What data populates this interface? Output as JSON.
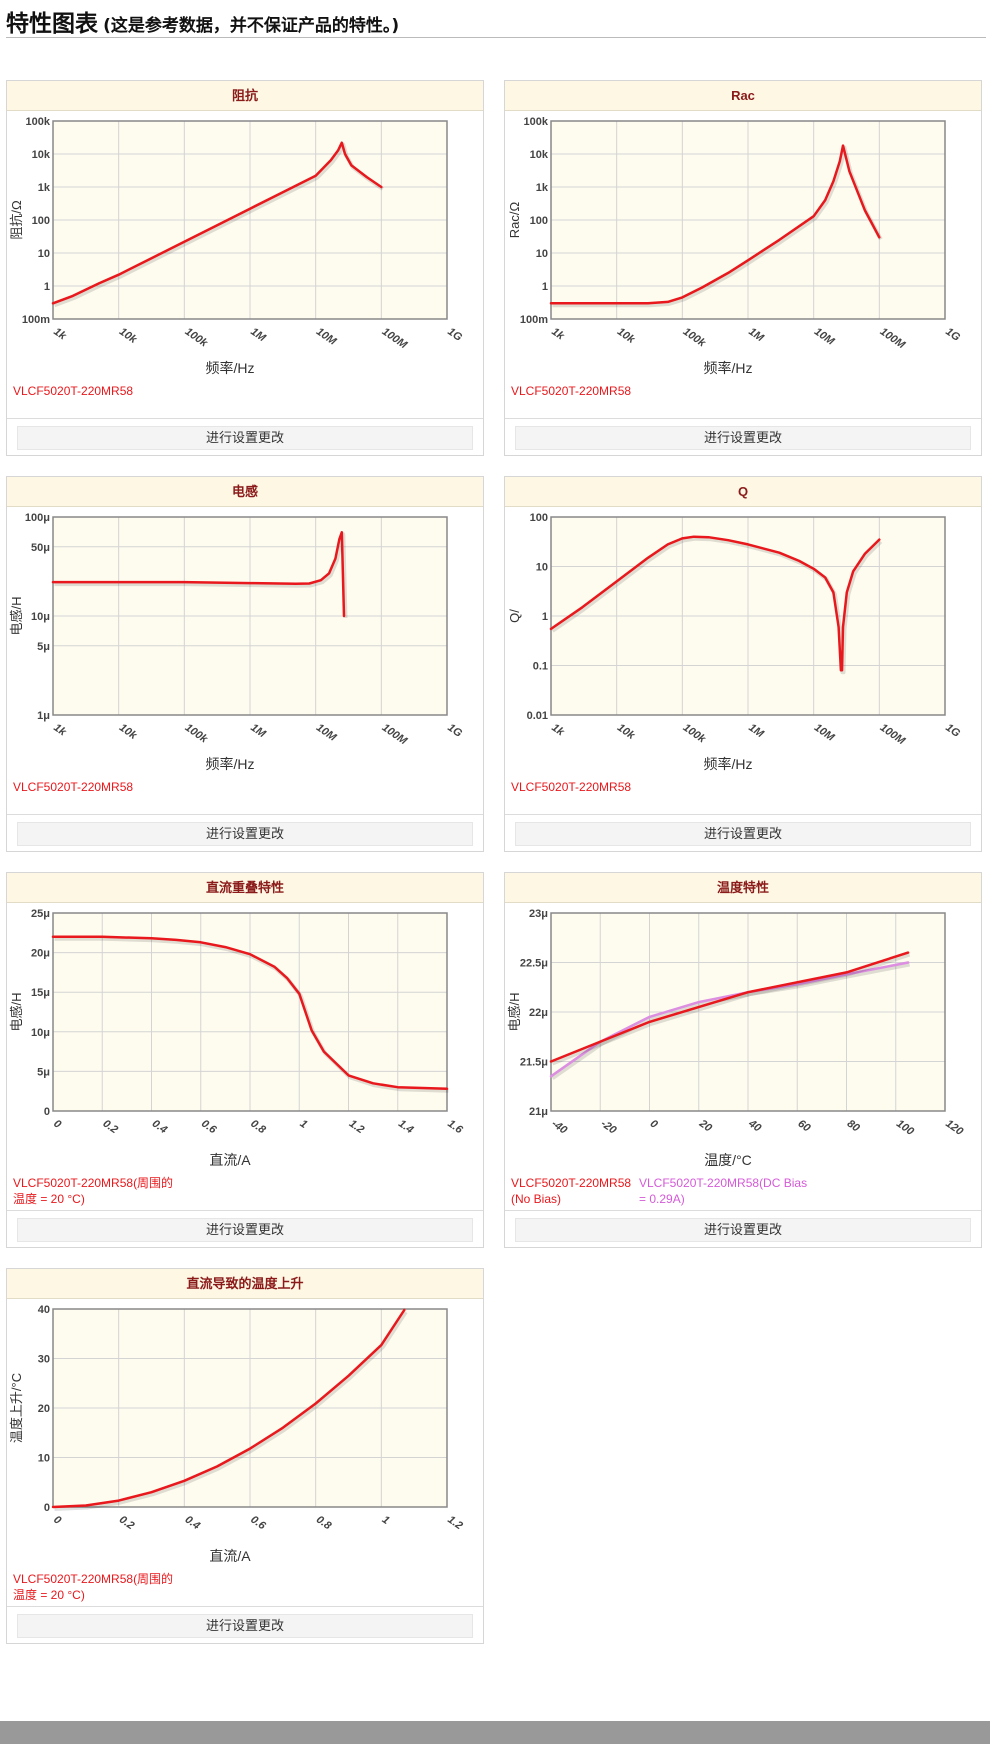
{
  "header": {
    "title": "特性图表",
    "subtitle": "(这是参考数据，并不保证产品的特性。)"
  },
  "colors": {
    "series_red": "#e8181c",
    "series_pink": "#dc8ee0",
    "legend_red": "#e8181c",
    "legend_pink": "#d55ad8",
    "panel_bg": "#fefbef",
    "header_bg": "#fdf7e3",
    "title_color": "#8b1a1a"
  },
  "setting_label": "进行设置更改",
  "charts": [
    {
      "id": "impedance",
      "title": "阻抗",
      "type": "line",
      "xscale": "log",
      "yscale": "log",
      "xlabel": "频率/Hz",
      "ylabel": "阻抗/Ω",
      "xlim": [
        1000,
        1000000000
      ],
      "ylim": [
        0.1,
        100000
      ],
      "xticks": [
        [
          1000,
          "1k"
        ],
        [
          10000,
          "10k"
        ],
        [
          100000,
          "100k"
        ],
        [
          1000000,
          "1M"
        ],
        [
          10000000,
          "10M"
        ],
        [
          100000000,
          "100M"
        ],
        [
          1000000000,
          "1G"
        ]
      ],
      "yticks": [
        [
          0.1,
          "100m"
        ],
        [
          1,
          "1"
        ],
        [
          10,
          "10"
        ],
        [
          100,
          "100"
        ],
        [
          1000,
          "1k"
        ],
        [
          10000,
          "10k"
        ],
        [
          100000,
          "100k"
        ]
      ],
      "series": [
        {
          "name": "VLCF5020T-220MR58",
          "color": "#e8181c",
          "x": [
            1000,
            2000,
            5000,
            10000,
            30000,
            100000,
            300000,
            1000000,
            3000000,
            10000000,
            17000000,
            22000000,
            25000000,
            28000000,
            35000000,
            60000000,
            100000000
          ],
          "y": [
            0.3,
            0.5,
            1.2,
            2.2,
            6.6,
            22,
            66,
            220,
            660,
            2200,
            6500,
            13000,
            22000,
            10000,
            4500,
            2000,
            1000
          ]
        }
      ],
      "legend": [
        {
          "text": "VLCF5020T-220MR58",
          "color": "#e8181c"
        }
      ]
    },
    {
      "id": "rac",
      "title": "Rac",
      "type": "line",
      "xscale": "log",
      "yscale": "log",
      "xlabel": "频率/Hz",
      "ylabel": "Rac/Ω",
      "xlim": [
        1000,
        1000000000
      ],
      "ylim": [
        0.1,
        100000
      ],
      "xticks": [
        [
          1000,
          "1k"
        ],
        [
          10000,
          "10k"
        ],
        [
          100000,
          "100k"
        ],
        [
          1000000,
          "1M"
        ],
        [
          10000000,
          "10M"
        ],
        [
          100000000,
          "100M"
        ],
        [
          1000000000,
          "1G"
        ]
      ],
      "yticks": [
        [
          0.1,
          "100m"
        ],
        [
          1,
          "1"
        ],
        [
          10,
          "10"
        ],
        [
          100,
          "100"
        ],
        [
          1000,
          "1k"
        ],
        [
          10000,
          "10k"
        ],
        [
          100000,
          "100k"
        ]
      ],
      "series": [
        {
          "name": "VLCF5020T-220MR58",
          "color": "#e8181c",
          "x": [
            1000,
            10000,
            30000,
            60000,
            100000,
            200000,
            500000,
            1000000,
            3000000,
            10000000,
            15000000,
            20000000,
            25000000,
            28000000,
            35000000,
            60000000,
            100000000
          ],
          "y": [
            0.3,
            0.3,
            0.3,
            0.33,
            0.45,
            0.9,
            2.5,
            6,
            25,
            130,
            400,
            1500,
            6000,
            18000,
            3000,
            200,
            30
          ]
        }
      ],
      "legend": [
        {
          "text": "VLCF5020T-220MR58",
          "color": "#e8181c"
        }
      ]
    },
    {
      "id": "inductance",
      "title": "电感",
      "type": "line",
      "xscale": "log",
      "yscale": "log",
      "xlabel": "频率/Hz",
      "ylabel": "电感/H",
      "xlim": [
        1000,
        1000000000
      ],
      "ylim": [
        1e-06,
        0.0001
      ],
      "xticks": [
        [
          1000,
          "1k"
        ],
        [
          10000,
          "10k"
        ],
        [
          100000,
          "100k"
        ],
        [
          1000000,
          "1M"
        ],
        [
          10000000,
          "10M"
        ],
        [
          100000000,
          "100M"
        ],
        [
          1000000000,
          "1G"
        ]
      ],
      "yticks": [
        [
          1e-06,
          "1μ"
        ],
        [
          5e-06,
          "5μ"
        ],
        [
          1e-05,
          "10μ"
        ],
        [
          5e-05,
          "50μ"
        ],
        [
          0.0001,
          "100μ"
        ]
      ],
      "series": [
        {
          "name": "VLCF5020T-220MR58",
          "color": "#e8181c",
          "x": [
            1000,
            10000,
            100000,
            1000000,
            5000000,
            8000000,
            12000000,
            16000000,
            20000000,
            23000000,
            25000000,
            27000000
          ],
          "y": [
            2.2e-05,
            2.2e-05,
            2.2e-05,
            2.15e-05,
            2.12e-05,
            2.13e-05,
            2.3e-05,
            2.7e-05,
            3.8e-05,
            6e-05,
            7e-05,
            1e-05
          ]
        }
      ],
      "legend": [
        {
          "text": "VLCF5020T-220MR58",
          "color": "#e8181c"
        }
      ]
    },
    {
      "id": "q",
      "title": "Q",
      "type": "line",
      "xscale": "log",
      "yscale": "log",
      "xlabel": "频率/Hz",
      "ylabel": "Q/",
      "xlim": [
        1000,
        1000000000
      ],
      "ylim": [
        0.01,
        100
      ],
      "xticks": [
        [
          1000,
          "1k"
        ],
        [
          10000,
          "10k"
        ],
        [
          100000,
          "100k"
        ],
        [
          1000000,
          "1M"
        ],
        [
          10000000,
          "10M"
        ],
        [
          100000000,
          "100M"
        ],
        [
          1000000000,
          "1G"
        ]
      ],
      "yticks": [
        [
          0.01,
          "0.01"
        ],
        [
          0.1,
          "0.1"
        ],
        [
          1,
          "1"
        ],
        [
          10,
          "10"
        ],
        [
          100,
          "100"
        ]
      ],
      "series": [
        {
          "name": "VLCF5020T-220MR58",
          "color": "#e8181c",
          "x": [
            1000,
            3000,
            10000,
            30000,
            60000,
            100000,
            150000,
            250000,
            500000,
            1000000,
            3000000,
            6000000,
            10000000,
            15000000,
            20000000,
            24000000,
            26000000,
            27000000,
            28000000,
            32000000,
            40000000,
            60000000,
            100000000
          ],
          "y": [
            0.55,
            1.5,
            5,
            15,
            28,
            37,
            40,
            39,
            34,
            28,
            19,
            13,
            9,
            6,
            3,
            0.6,
            0.08,
            0.08,
            0.6,
            3,
            8,
            18,
            35
          ]
        }
      ],
      "legend": [
        {
          "text": "VLCF5020T-220MR58",
          "color": "#e8181c"
        }
      ]
    },
    {
      "id": "dc-bias",
      "title": "直流重叠特性",
      "type": "line",
      "xscale": "linear",
      "yscale": "linear",
      "xlabel": "直流/A",
      "ylabel": "电感/H",
      "xlim": [
        0,
        1.6
      ],
      "ylim": [
        0,
        2.5e-05
      ],
      "xticks": [
        [
          0,
          "0"
        ],
        [
          0.2,
          "0.2"
        ],
        [
          0.4,
          "0.4"
        ],
        [
          0.6,
          "0.6"
        ],
        [
          0.8,
          "0.8"
        ],
        [
          1,
          "1"
        ],
        [
          1.2,
          "1.2"
        ],
        [
          1.4,
          "1.4"
        ],
        [
          1.6,
          "1.6"
        ]
      ],
      "yticks": [
        [
          0,
          "0"
        ],
        [
          5e-06,
          "5μ"
        ],
        [
          1e-05,
          "10μ"
        ],
        [
          1.5e-05,
          "15μ"
        ],
        [
          2e-05,
          "20μ"
        ],
        [
          2.5e-05,
          "25μ"
        ]
      ],
      "series": [
        {
          "name": "VLCF5020T-220MR58(周围的温度 = 20 °C)",
          "color": "#e8181c",
          "x": [
            0,
            0.2,
            0.4,
            0.5,
            0.6,
            0.7,
            0.8,
            0.9,
            0.95,
            1.0,
            1.05,
            1.1,
            1.15,
            1.2,
            1.3,
            1.4,
            1.5,
            1.6
          ],
          "y": [
            2.2e-05,
            2.2e-05,
            2.18e-05,
            2.16e-05,
            2.13e-05,
            2.07e-05,
            1.98e-05,
            1.82e-05,
            1.68e-05,
            1.48e-05,
            1.02e-05,
            7.5e-06,
            6e-06,
            4.5e-06,
            3.5e-06,
            3e-06,
            2.9e-06,
            2.8e-06
          ]
        }
      ],
      "legend": [
        {
          "text": "VLCF5020T-220MR58(周围的",
          "text2": "温度 = 20 °C)",
          "color": "#e8181c"
        }
      ]
    },
    {
      "id": "temperature",
      "title": "温度特性",
      "type": "line",
      "xscale": "linear",
      "yscale": "linear",
      "xlabel": "温度/°C",
      "ylabel": "电感/H",
      "xlim": [
        -40,
        120
      ],
      "ylim": [
        2.1e-05,
        2.3e-05
      ],
      "xticks": [
        [
          -40,
          "-40"
        ],
        [
          -20,
          "-20"
        ],
        [
          0,
          "0"
        ],
        [
          20,
          "20"
        ],
        [
          40,
          "40"
        ],
        [
          60,
          "60"
        ],
        [
          80,
          "80"
        ],
        [
          100,
          "100"
        ],
        [
          120,
          "120"
        ]
      ],
      "yticks": [
        [
          2.1e-05,
          "21μ"
        ],
        [
          2.15e-05,
          "21.5μ"
        ],
        [
          2.2e-05,
          "22μ"
        ],
        [
          2.25e-05,
          "22.5μ"
        ],
        [
          2.3e-05,
          "23μ"
        ]
      ],
      "series": [
        {
          "name": "VLCF5020T-220MR58(DC Bias = 0.29A)",
          "color": "#dc8ee0",
          "x": [
            -40,
            -20,
            0,
            20,
            40,
            60,
            80,
            105
          ],
          "y": [
            2.135e-05,
            2.17e-05,
            2.195e-05,
            2.21e-05,
            2.22e-05,
            2.228e-05,
            2.238e-05,
            2.25e-05
          ]
        },
        {
          "name": "VLCF5020T-220MR58(No Bias)",
          "color": "#e8181c",
          "x": [
            -40,
            0,
            40,
            80,
            105
          ],
          "y": [
            2.15e-05,
            2.19e-05,
            2.22e-05,
            2.24e-05,
            2.26e-05
          ]
        }
      ],
      "legend": [
        {
          "text": "VLCF5020T-220MR58",
          "text2": "(No Bias)",
          "color": "#e8181c"
        },
        {
          "text": "VLCF5020T-220MR58(DC Bias",
          "text2": "= 0.29A)",
          "color": "#d55ad8"
        }
      ]
    },
    {
      "id": "temp-rise",
      "title": "直流导致的温度上升",
      "type": "line",
      "xscale": "linear",
      "yscale": "linear",
      "xlabel": "直流/A",
      "ylabel": "温度上升/°C",
      "xlim": [
        0,
        1.2
      ],
      "ylim": [
        0,
        40
      ],
      "xticks": [
        [
          0,
          "0"
        ],
        [
          0.2,
          "0.2"
        ],
        [
          0.4,
          "0.4"
        ],
        [
          0.6,
          "0.6"
        ],
        [
          0.8,
          "0.8"
        ],
        [
          1,
          "1"
        ],
        [
          1.2,
          "1.2"
        ]
      ],
      "yticks": [
        [
          0,
          "0"
        ],
        [
          10,
          "10"
        ],
        [
          20,
          "20"
        ],
        [
          30,
          "30"
        ],
        [
          40,
          "40"
        ]
      ],
      "series": [
        {
          "name": "VLCF5020T-220MR58(周围的温度 = 20 °C)",
          "color": "#e8181c",
          "x": [
            0,
            0.1,
            0.2,
            0.3,
            0.4,
            0.5,
            0.6,
            0.7,
            0.8,
            0.9,
            1.0,
            1.07
          ],
          "y": [
            0,
            0.3,
            1.3,
            3,
            5.3,
            8.2,
            11.8,
            16,
            20.9,
            26.5,
            32.7,
            39.8
          ]
        }
      ],
      "legend": [
        {
          "text": "VLCF5020T-220MR58(周围的",
          "text2": "温度 = 20 °C)",
          "color": "#e8181c"
        }
      ]
    }
  ]
}
